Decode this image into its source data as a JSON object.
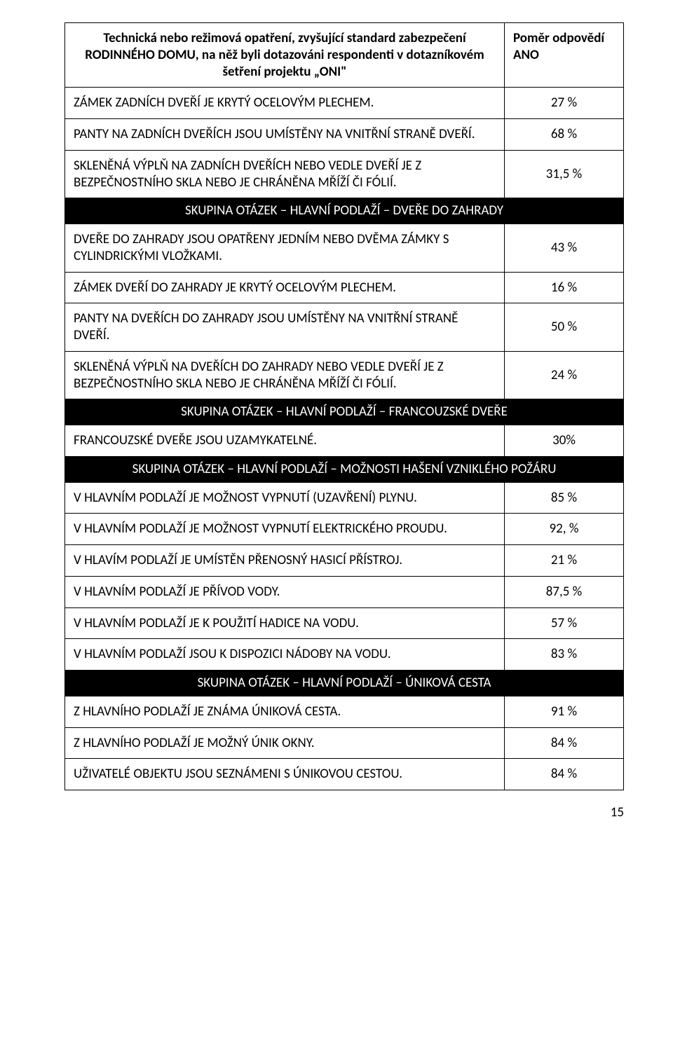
{
  "header": {
    "left": "Technická nebo režimová opatření, zvyšující standard zabezpečení RODINNÉHO DOMU, na něž byli dotazováni respondenti v dotazníkovém šetření projektu „ONI\"",
    "right": "Poměr odpovědí ANO"
  },
  "rows": [
    {
      "type": "data",
      "left": "ZÁMEK ZADNÍCH DVEŘÍ JE KRYTÝ OCELOVÝM PLECHEM.",
      "right": "27 %"
    },
    {
      "type": "data",
      "left": "PANTY NA ZADNÍCH DVEŘÍCH JSOU UMÍSTĚNY NA VNITŘNÍ STRANĚ DVEŘÍ.",
      "right": "68 %"
    },
    {
      "type": "data",
      "left": "SKLENĚNÁ VÝPLŇ NA ZADNÍCH DVEŘÍCH NEBO VEDLE DVEŘÍ JE Z BEZPEČNOSTNÍHO SKLA NEBO JE CHRÁNĚNA MŘÍŽÍ ČI FÓLIÍ.",
      "right": "31,5 %"
    },
    {
      "type": "section",
      "label": "SKUPINA OTÁZEK – HLAVNÍ PODLAŽÍ – DVEŘE DO ZAHRADY"
    },
    {
      "type": "data",
      "left": "DVEŘE DO ZAHRADY JSOU OPATŘENY JEDNÍM NEBO DVĚMA ZÁMKY S CYLINDRICKÝMI VLOŽKAMI.",
      "right": "43 %"
    },
    {
      "type": "data",
      "left": "ZÁMEK DVEŘÍ DO ZAHRADY JE KRYTÝ OCELOVÝM PLECHEM.",
      "right": "16 %"
    },
    {
      "type": "data",
      "left": "PANTY NA DVEŘÍCH DO ZAHRADY JSOU UMÍSTĚNY NA VNITŘNÍ STRANĚ DVEŘÍ.",
      "right": "50 %"
    },
    {
      "type": "data",
      "left": "SKLENĚNÁ VÝPLŇ NA DVEŘÍCH DO ZAHRADY NEBO VEDLE DVEŘÍ JE Z BEZPEČNOSTNÍHO SKLA NEBO JE CHRÁNĚNA MŘÍŽÍ ČI FÓLIÍ.",
      "right": "24 %"
    },
    {
      "type": "section",
      "label": "SKUPINA OTÁZEK – HLAVNÍ PODLAŽÍ – FRANCOUZSKÉ DVEŘE"
    },
    {
      "type": "data",
      "left": "FRANCOUZSKÉ DVEŘE JSOU UZAMYKATELNÉ.",
      "right": "30%"
    },
    {
      "type": "section",
      "label": "SKUPINA OTÁZEK – HLAVNÍ PODLAŽÍ – MOŽNOSTI HAŠENÍ VZNIKLÉHO POŽÁRU"
    },
    {
      "type": "data",
      "left": "V HLAVNÍM PODLAŽÍ JE MOŽNOST VYPNUTÍ (UZAVŘENÍ) PLYNU.",
      "right": "85 %"
    },
    {
      "type": "data",
      "left": "V HLAVNÍM PODLAŽÍ JE MOŽNOST VYPNUTÍ ELEKTRICKÉHO PROUDU.",
      "right": "92, %"
    },
    {
      "type": "data",
      "left": "V HLAVÍM PODLAŽÍ JE UMÍSTĚN PŘENOSNÝ HASICÍ PŘÍSTROJ.",
      "right": "21 %"
    },
    {
      "type": "data",
      "left": "V HLAVNÍM PODLAŽÍ JE PŘÍVOD VODY.",
      "right": "87,5 %"
    },
    {
      "type": "data",
      "left": "V HLAVNÍM PODLAŽÍ JE K POUŽITÍ HADICE NA VODU.",
      "right": "57 %"
    },
    {
      "type": "data",
      "left": "V HLAVNÍM PODLAŽÍ JSOU K DISPOZICI NÁDOBY NA VODU.",
      "right": "83 %"
    },
    {
      "type": "section",
      "label": "SKUPINA OTÁZEK – HLAVNÍ PODLAŽÍ – ÚNIKOVÁ CESTA"
    },
    {
      "type": "data",
      "left": "Z HLAVNÍHO PODLAŽÍ JE ZNÁMA ÚNIKOVÁ CESTA.",
      "right": "91 %"
    },
    {
      "type": "data",
      "left": "Z HLAVNÍHO PODLAŽÍ JE MOŽNÝ ÚNIK OKNY.",
      "right": "84 %"
    },
    {
      "type": "data",
      "left": "UŽIVATELÉ OBJEKTU JSOU SEZNÁMENI S ÚNIKOVOU CESTOU.",
      "right": "84 %"
    }
  ],
  "page_number": "15",
  "columns": {
    "left_width": 628,
    "right_width": 170
  },
  "styles": {
    "text_color": "#000000",
    "background_color": "#ffffff",
    "section_bg": "#000000",
    "section_text": "#ffffff",
    "border_color": "#000000",
    "body_fontsize": 19,
    "font_family": "Calibri"
  }
}
